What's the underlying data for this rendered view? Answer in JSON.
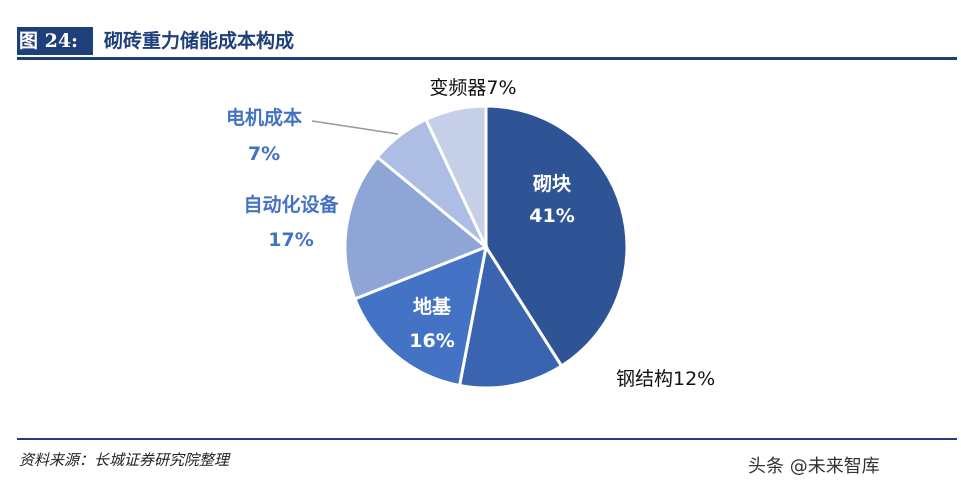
{
  "header": {
    "figure_label": "图 24:",
    "title": "砌砖重力储能成本构成"
  },
  "chart_data": {
    "type": "pie",
    "title": "砌砖重力储能成本构成",
    "slices": [
      {
        "label": "砌块",
        "value": 41,
        "pct_label": "41%",
        "color": "#2f5496"
      },
      {
        "label": "钢结构",
        "value": 12,
        "pct_label": "钢结构12%",
        "color": "#3a63b0"
      },
      {
        "label": "地基",
        "value": 16,
        "pct_label": "16%",
        "color": "#4472c4"
      },
      {
        "label": "自动化设备",
        "value": 17,
        "pct_label": "17%",
        "color": "#8ea5d6"
      },
      {
        "label": "电机成本",
        "value": 7,
        "pct_label": "7%",
        "color": "#aebde3"
      },
      {
        "label": "变频器",
        "value": 7,
        "pct_label": "变频器7%",
        "color": "#c5cfe8"
      }
    ]
  },
  "footer": {
    "source": "资料来源：长城证券研究院整理",
    "watermark": "头条 @未来智库"
  }
}
